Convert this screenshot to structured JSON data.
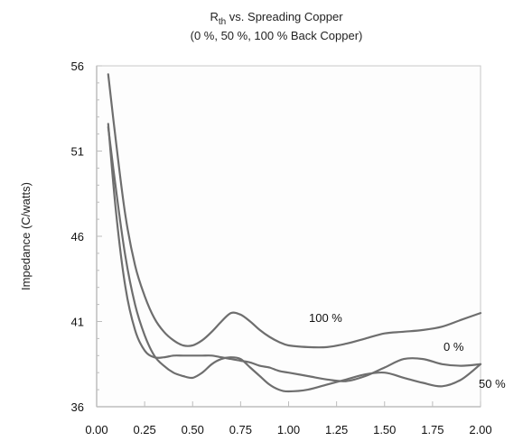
{
  "chart_data": {
    "type": "line",
    "title": {
      "base": "R",
      "sub": "th",
      "rest": " vs. Spreading Copper"
    },
    "subtitle": "(0 %, 50 %, 100 % Back Copper)",
    "xlabel": "",
    "ylabel": "Impedance (C/watts)",
    "xlim": [
      0,
      2
    ],
    "ylim": [
      36,
      56
    ],
    "xticks": [
      "0.00",
      "0.25",
      "0.50",
      "0.75",
      "1.00",
      "1.25",
      "1.50",
      "1.75",
      "2.00"
    ],
    "yticks": [
      "36",
      "41",
      "46",
      "51",
      "56"
    ],
    "grid": false,
    "series": [
      {
        "name": "100 %",
        "x": [
          0.06,
          0.1,
          0.15,
          0.2,
          0.25,
          0.3,
          0.35,
          0.4,
          0.45,
          0.5,
          0.55,
          0.6,
          0.65,
          0.7,
          0.75,
          0.8,
          0.85,
          0.9,
          0.95,
          1.0,
          1.1,
          1.2,
          1.3,
          1.4,
          1.5,
          1.6,
          1.7,
          1.8,
          1.9,
          2.0
        ],
        "values": [
          55.5,
          51.6,
          47.2,
          44.3,
          42.5,
          41.2,
          40.4,
          39.9,
          39.6,
          39.6,
          39.9,
          40.4,
          41.0,
          41.5,
          41.4,
          41.0,
          40.5,
          40.1,
          39.8,
          39.6,
          39.5,
          39.5,
          39.7,
          40.0,
          40.3,
          40.4,
          40.5,
          40.7,
          41.1,
          41.5
        ]
      },
      {
        "name": "0 %",
        "x": [
          0.06,
          0.1,
          0.15,
          0.2,
          0.25,
          0.3,
          0.35,
          0.4,
          0.45,
          0.5,
          0.55,
          0.6,
          0.65,
          0.7,
          0.75,
          0.8,
          0.85,
          0.9,
          0.95,
          1.0,
          1.1,
          1.2,
          1.3,
          1.4,
          1.5,
          1.6,
          1.7,
          1.8,
          1.9,
          2.0
        ],
        "values": [
          52.6,
          47.5,
          43.0,
          40.5,
          39.3,
          38.9,
          38.9,
          39.0,
          39.0,
          39.0,
          39.0,
          39.0,
          38.9,
          38.8,
          38.7,
          38.6,
          38.4,
          38.3,
          38.1,
          38.0,
          37.8,
          37.6,
          37.5,
          37.8,
          38.3,
          38.8,
          38.8,
          38.5,
          38.4,
          38.5
        ]
      },
      {
        "name": "50 %",
        "x": [
          0.06,
          0.1,
          0.15,
          0.2,
          0.25,
          0.3,
          0.35,
          0.4,
          0.45,
          0.5,
          0.55,
          0.6,
          0.65,
          0.7,
          0.75,
          0.8,
          0.85,
          0.9,
          0.95,
          1.0,
          1.1,
          1.2,
          1.3,
          1.4,
          1.5,
          1.6,
          1.7,
          1.8,
          1.9,
          2.0
        ],
        "values": [
          52.4,
          48.8,
          44.8,
          42.0,
          40.2,
          39.0,
          38.4,
          38.0,
          37.8,
          37.7,
          38.0,
          38.5,
          38.8,
          38.9,
          38.8,
          38.3,
          37.8,
          37.3,
          37.0,
          36.9,
          37.0,
          37.3,
          37.6,
          37.9,
          38.0,
          37.7,
          37.4,
          37.2,
          37.6,
          38.5
        ]
      }
    ]
  }
}
